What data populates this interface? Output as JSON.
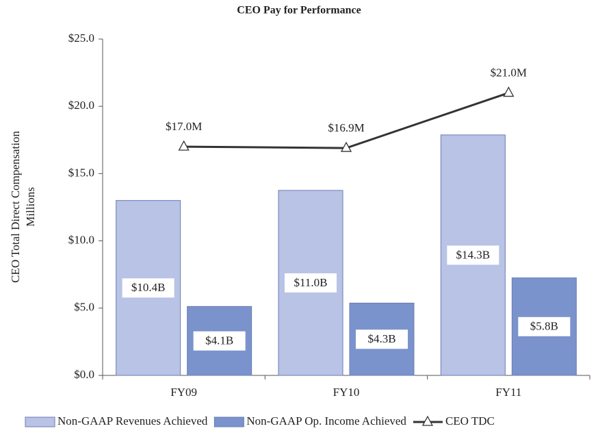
{
  "chart_data": {
    "type": "bar",
    "title": "CEO Pay for Performance",
    "ylabel": [
      "CEO Total Direct Compensation",
      "Millions"
    ],
    "categories": [
      "FY09",
      "FY10",
      "FY11"
    ],
    "ylim": [
      0,
      25
    ],
    "yticks": [
      {
        "value": 0,
        "label": "$0.0"
      },
      {
        "value": 5,
        "label": "$5.0"
      },
      {
        "value": 10,
        "label": "$10.0"
      },
      {
        "value": 15,
        "label": "$15.0"
      },
      {
        "value": 20,
        "label": "$20.0"
      },
      {
        "value": 25,
        "label": "$25.0"
      }
    ],
    "y2lim": [
      0,
      20
    ],
    "series": [
      {
        "name": "Non-GAAP Revenues Achieved",
        "type": "bar",
        "axis": "y2",
        "color": "#b9c3e5",
        "values": [
          10.4,
          11.0,
          14.3
        ],
        "value_labels": [
          "$10.4B",
          "$11.0B",
          "$14.3B"
        ]
      },
      {
        "name": "Non-GAAP Op. Income Achieved",
        "type": "bar",
        "axis": "y2",
        "color": "#7b93cc",
        "values": [
          4.1,
          4.3,
          5.8
        ],
        "value_labels": [
          "$4.1B",
          "$4.3B",
          "$5.8B"
        ]
      },
      {
        "name": "CEO TDC",
        "type": "line",
        "color": "#333333",
        "values": [
          17.0,
          16.9,
          21.0
        ],
        "value_labels": [
          "$17.0M",
          "$16.9M",
          "$21.0M"
        ]
      }
    ],
    "legend": "bottom"
  }
}
